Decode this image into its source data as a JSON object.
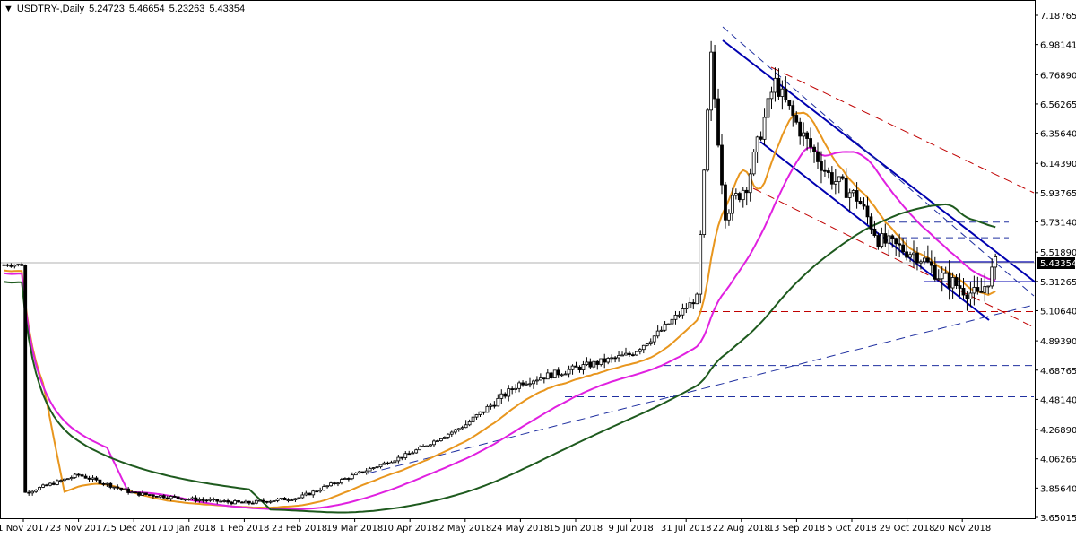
{
  "header": {
    "symbol": "USDTRY-,Daily",
    "open": "5.24723",
    "high": "5.46654",
    "low": "5.23263",
    "close": "5.43354"
  },
  "colors": {
    "candle": "#000000",
    "ma_short": "#e8961e",
    "ma_mid": "#e020e0",
    "ma_long": "#1e5a1e",
    "trendline": "#0000b0",
    "dash_red": "#c00000",
    "dash_blue": "#2030a0"
  },
  "chart_data": {
    "type": "candlestick",
    "y_ticks": [
      "7.18765",
      "6.98141",
      "6.76890",
      "6.56265",
      "6.35640",
      "6.14390",
      "5.93765",
      "5.73140",
      "5.51890",
      "5.31265",
      "5.10640",
      "4.89390",
      "4.68765",
      "4.48140",
      "4.26890",
      "4.06265",
      "3.85640",
      "3.65015"
    ],
    "x_ticks": [
      "1 Nov 2017",
      "23 Nov 2017",
      "15 Dec 2017",
      "10 Jan 2018",
      "1 Feb 2018",
      "23 Feb 2018",
      "19 Mar 2018",
      "10 Apr 2018",
      "2 May 2018",
      "24 May 2018",
      "15 Jun 2018",
      "9 Jul 2018",
      "31 Jul 2018",
      "22 Aug 2018",
      "13 Sep 2018",
      "5 Oct 2018",
      "29 Oct 2018",
      "20 Nov 2018"
    ],
    "ylim": [
      3.65015,
      7.18765
    ],
    "current_price": "5.43354",
    "key_points": [
      {
        "x": "1 Nov 2017",
        "y": 3.82
      },
      {
        "x": "23 Nov 2017",
        "y": 3.95
      },
      {
        "x": "15 Dec 2017",
        "y": 3.82
      },
      {
        "x": "10 Jan 2018",
        "y": 3.78
      },
      {
        "x": "1 Feb 2018",
        "y": 3.75
      },
      {
        "x": "23 Feb 2018",
        "y": 3.79
      },
      {
        "x": "19 Mar 2018",
        "y": 3.95
      },
      {
        "x": "10 Apr 2018",
        "y": 4.1
      },
      {
        "x": "2 May 2018",
        "y": 4.3
      },
      {
        "x": "24 May 2018",
        "y": 4.6
      },
      {
        "x": "15 Jun 2018",
        "y": 4.7
      },
      {
        "x": "9 Jul 2018",
        "y": 4.8
      },
      {
        "x": "31 Jul 2018",
        "y": 5.0
      },
      {
        "x": "22 Aug 2018",
        "y": 6.7
      },
      {
        "x": "13 Sep 2018",
        "y": 6.2
      },
      {
        "x": "5 Oct 2018",
        "y": 5.75
      },
      {
        "x": "29 Oct 2018",
        "y": 5.45
      },
      {
        "x": "20 Nov 2018",
        "y": 5.25
      }
    ],
    "horizontal_levels": [
      5.73,
      5.62,
      5.45,
      5.31,
      5.1,
      4.72,
      4.5
    ]
  }
}
